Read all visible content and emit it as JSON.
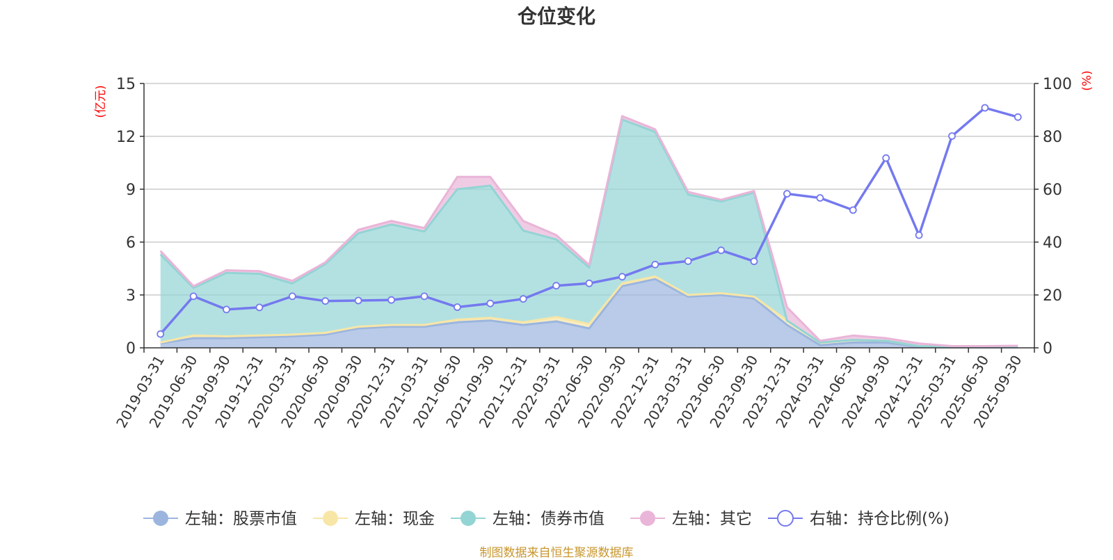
{
  "chart_data": {
    "type": "area",
    "title": "仓位变化",
    "left_axis_unit": "(亿元)",
    "right_axis_unit": "(%)",
    "ylim_left": [
      0,
      15
    ],
    "yticks_left": [
      "0",
      "3",
      "6",
      "9",
      "12",
      "15"
    ],
    "ylim_right": [
      0,
      100
    ],
    "yticks_right": [
      "0",
      "20",
      "40",
      "60",
      "80",
      "100"
    ],
    "grid": true,
    "legend_position": "bottom",
    "categories": [
      "2019-03-31",
      "2019-06-30",
      "2019-09-30",
      "2019-12-31",
      "2020-03-31",
      "2020-06-30",
      "2020-09-30",
      "2020-12-31",
      "2021-03-31",
      "2021-06-30",
      "2021-09-30",
      "2021-12-31",
      "2022-03-31",
      "2022-06-30",
      "2022-09-30",
      "2022-12-31",
      "2023-03-31",
      "2023-06-30",
      "2023-09-30",
      "2023-12-31",
      "2024-03-31",
      "2024-06-30",
      "2024-09-30",
      "2024-12-31",
      "2025-03-31",
      "2025-06-30",
      "2025-09-30"
    ],
    "series": [
      {
        "name": "左轴：股票市值",
        "axis": "left",
        "stacked": true,
        "color": "#9bb5de",
        "values": [
          0.25,
          0.55,
          0.55,
          0.6,
          0.65,
          0.75,
          1.1,
          1.2,
          1.2,
          1.45,
          1.55,
          1.3,
          1.5,
          1.1,
          3.5,
          3.9,
          2.9,
          3.0,
          2.8,
          1.3,
          0.15,
          0.3,
          0.3,
          0.05,
          0.03,
          0.03,
          0.03
        ]
      },
      {
        "name": "左轴：现金",
        "axis": "left",
        "stacked": true,
        "color": "#f7e6a6",
        "values": [
          0.05,
          0.15,
          0.1,
          0.1,
          0.1,
          0.1,
          0.1,
          0.1,
          0.1,
          0.15,
          0.15,
          0.15,
          0.25,
          0.25,
          0.15,
          0.15,
          0.1,
          0.1,
          0.1,
          0.25,
          0.15,
          0.15,
          0.1,
          0.05,
          0.02,
          0.02,
          0.02
        ]
      },
      {
        "name": "左轴：债券市值",
        "axis": "left",
        "stacked": true,
        "color": "#93d4d4",
        "values": [
          5.0,
          2.7,
          3.6,
          3.5,
          2.9,
          3.9,
          5.3,
          5.7,
          5.3,
          7.4,
          7.5,
          5.2,
          4.4,
          3.2,
          9.3,
          8.2,
          5.7,
          5.2,
          5.9,
          0,
          0,
          0,
          0,
          0,
          0,
          0,
          0
        ]
      },
      {
        "name": "左轴：其它",
        "axis": "left",
        "stacked": true,
        "color": "#e9b5d8",
        "values": [
          0.2,
          0.1,
          0.15,
          0.15,
          0.15,
          0.1,
          0.2,
          0.2,
          0.2,
          0.7,
          0.5,
          0.55,
          0.25,
          0.15,
          0.2,
          0.15,
          0.15,
          0.1,
          0.1,
          0.75,
          0.1,
          0.25,
          0.15,
          0.15,
          0.05,
          0.05,
          0.07
        ]
      },
      {
        "name": "右轴：持仓比例(%)",
        "axis": "right",
        "stacked": false,
        "color": "#7479ef",
        "values": [
          5.2,
          19.5,
          14.5,
          15.3,
          19.5,
          17.7,
          17.9,
          18.1,
          19.5,
          15.4,
          16.8,
          18.5,
          23.5,
          24.4,
          26.9,
          31.5,
          32.8,
          36.9,
          32.7,
          58.3,
          56.7,
          52.1,
          71.8,
          42.6,
          80.1,
          90.8,
          87.3
        ]
      }
    ]
  },
  "footer": {
    "source": "制图数据来自恒生聚源数据库"
  }
}
